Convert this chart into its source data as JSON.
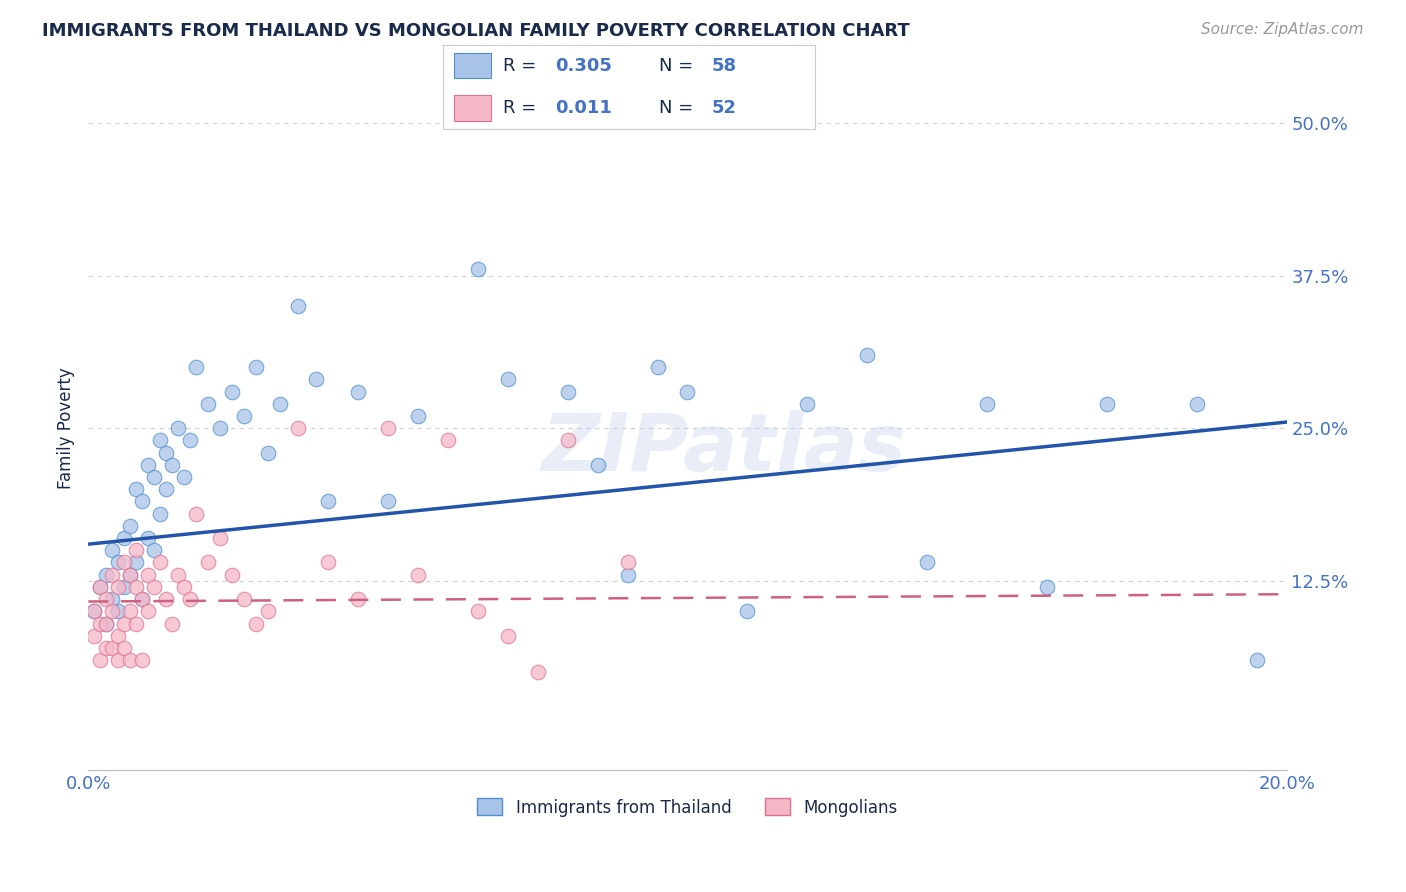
{
  "title": "IMMIGRANTS FROM THAILAND VS MONGOLIAN FAMILY POVERTY CORRELATION CHART",
  "source_text": "Source: ZipAtlas.com",
  "ylabel": "Family Poverty",
  "xlim": [
    0.0,
    0.2
  ],
  "ylim": [
    -0.03,
    0.53
  ],
  "blue_R": 0.305,
  "blue_N": 58,
  "pink_R": 0.011,
  "pink_N": 52,
  "blue_scatter_color": "#a8c4e8",
  "blue_scatter_edge": "#5090d0",
  "pink_scatter_color": "#f5b8c8",
  "pink_scatter_edge": "#e07090",
  "blue_line_color": "#2255aa",
  "pink_line_color": "#d06080",
  "title_color": "#1a2a4a",
  "tick_color": "#4472c4",
  "grid_color": "#c8d0dc",
  "source_color": "#999999",
  "watermark": "ZIPatlas",
  "legend_r_text_color": "#1a2a4a",
  "legend_val_color": "#4472c4",
  "blue_x": [
    0.001,
    0.002,
    0.003,
    0.003,
    0.004,
    0.004,
    0.005,
    0.005,
    0.006,
    0.006,
    0.007,
    0.007,
    0.008,
    0.008,
    0.009,
    0.009,
    0.01,
    0.01,
    0.011,
    0.011,
    0.012,
    0.012,
    0.013,
    0.013,
    0.014,
    0.015,
    0.016,
    0.017,
    0.018,
    0.02,
    0.022,
    0.024,
    0.026,
    0.028,
    0.03,
    0.032,
    0.035,
    0.038,
    0.04,
    0.045,
    0.05,
    0.055,
    0.065,
    0.07,
    0.08,
    0.085,
    0.09,
    0.095,
    0.1,
    0.11,
    0.12,
    0.13,
    0.14,
    0.15,
    0.16,
    0.17,
    0.185,
    0.195
  ],
  "blue_y": [
    0.1,
    0.12,
    0.09,
    0.13,
    0.11,
    0.15,
    0.1,
    0.14,
    0.12,
    0.16,
    0.13,
    0.17,
    0.14,
    0.2,
    0.11,
    0.19,
    0.16,
    0.22,
    0.15,
    0.21,
    0.18,
    0.24,
    0.2,
    0.23,
    0.22,
    0.25,
    0.21,
    0.24,
    0.3,
    0.27,
    0.25,
    0.28,
    0.26,
    0.3,
    0.23,
    0.27,
    0.35,
    0.29,
    0.19,
    0.28,
    0.19,
    0.26,
    0.38,
    0.29,
    0.28,
    0.22,
    0.13,
    0.3,
    0.28,
    0.1,
    0.27,
    0.31,
    0.14,
    0.27,
    0.12,
    0.27,
    0.27,
    0.06
  ],
  "pink_x": [
    0.001,
    0.001,
    0.002,
    0.002,
    0.002,
    0.003,
    0.003,
    0.003,
    0.004,
    0.004,
    0.004,
    0.005,
    0.005,
    0.005,
    0.006,
    0.006,
    0.006,
    0.007,
    0.007,
    0.007,
    0.008,
    0.008,
    0.008,
    0.009,
    0.009,
    0.01,
    0.01,
    0.011,
    0.012,
    0.013,
    0.014,
    0.015,
    0.016,
    0.017,
    0.018,
    0.02,
    0.022,
    0.024,
    0.026,
    0.028,
    0.03,
    0.035,
    0.04,
    0.045,
    0.05,
    0.055,
    0.06,
    0.065,
    0.07,
    0.075,
    0.08,
    0.09
  ],
  "pink_y": [
    0.1,
    0.08,
    0.09,
    0.12,
    0.06,
    0.09,
    0.11,
    0.07,
    0.1,
    0.13,
    0.07,
    0.08,
    0.12,
    0.06,
    0.09,
    0.14,
    0.07,
    0.1,
    0.13,
    0.06,
    0.12,
    0.09,
    0.15,
    0.11,
    0.06,
    0.13,
    0.1,
    0.12,
    0.14,
    0.11,
    0.09,
    0.13,
    0.12,
    0.11,
    0.18,
    0.14,
    0.16,
    0.13,
    0.11,
    0.09,
    0.1,
    0.25,
    0.14,
    0.11,
    0.25,
    0.13,
    0.24,
    0.1,
    0.08,
    0.05,
    0.24,
    0.14
  ]
}
